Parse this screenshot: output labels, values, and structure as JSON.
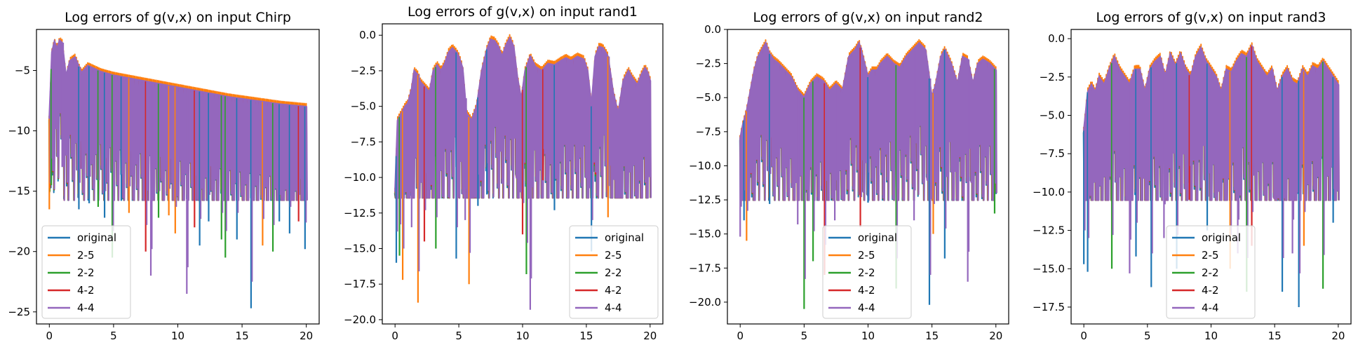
{
  "chart_data": [
    {
      "type": "line",
      "title": "Log errors of g(v,x) on input Chirp",
      "xlabel": "",
      "ylabel": "",
      "xlim": [
        -1,
        21
      ],
      "ylim": [
        -26,
        -1.6
      ],
      "xticks": [
        0,
        5,
        10,
        15,
        20
      ],
      "xtick_labels": [
        "0",
        "5",
        "10",
        "15",
        "20"
      ],
      "yticks": [
        -5,
        -10,
        -15,
        -20,
        -25
      ],
      "ytick_labels": [
        "−5",
        "−10",
        "−15",
        "−20",
        "−25"
      ],
      "legend_position": "lower-left",
      "series": [
        {
          "name": "original",
          "color": "#1f77b4"
        },
        {
          "name": "2-5",
          "color": "#ff7f0e"
        },
        {
          "name": "2-2",
          "color": "#2ca02c"
        },
        {
          "name": "4-2",
          "color": "#d62728"
        },
        {
          "name": "4-4",
          "color": "#9467bd"
        }
      ],
      "upper_envelope": {
        "x": [
          0,
          0.2,
          0.4,
          0.6,
          0.8,
          1.0,
          1.3,
          1.6,
          2.0,
          2.5,
          3.0,
          4.0,
          5.0,
          6.0,
          8.0,
          10.0,
          12.0,
          14.0,
          16.0,
          18.0,
          20.0
        ],
        "y": [
          -9,
          -3.5,
          -2.6,
          -3.2,
          -2.5,
          -2.7,
          -5.5,
          -4.2,
          -3.9,
          -5.2,
          -4.6,
          -5.1,
          -5.4,
          -5.6,
          -6.0,
          -6.4,
          -6.8,
          -7.2,
          -7.5,
          -7.8,
          -8.0
        ]
      },
      "trough_minima": [
        {
          "x": 0.0,
          "y": -16.5,
          "series": "2-5"
        },
        {
          "x": 0.15,
          "y": -14.5,
          "series": "2-2"
        },
        {
          "x": 1.0,
          "y": -13.0,
          "series": "4-4"
        },
        {
          "x": 2.3,
          "y": -16.5,
          "series": "original"
        },
        {
          "x": 3.1,
          "y": -16.0,
          "series": "original"
        },
        {
          "x": 3.8,
          "y": -16.3,
          "series": "2-2"
        },
        {
          "x": 4.3,
          "y": -17.2,
          "series": "original"
        },
        {
          "x": 4.9,
          "y": -20.5,
          "series": "2-2"
        },
        {
          "x": 5.6,
          "y": -15.8,
          "series": "original"
        },
        {
          "x": 6.2,
          "y": -16.8,
          "series": "2-5"
        },
        {
          "x": 7.5,
          "y": -20.0,
          "series": "4-2"
        },
        {
          "x": 7.9,
          "y": -22.0,
          "series": "4-4"
        },
        {
          "x": 8.5,
          "y": -17.2,
          "series": "2-2"
        },
        {
          "x": 9.3,
          "y": -17.0,
          "series": "2-5"
        },
        {
          "x": 9.8,
          "y": -18.5,
          "series": "2-5"
        },
        {
          "x": 10.7,
          "y": -23.5,
          "series": "4-4"
        },
        {
          "x": 11.3,
          "y": -18.0,
          "series": "4-2"
        },
        {
          "x": 11.7,
          "y": -19.5,
          "series": "original"
        },
        {
          "x": 12.4,
          "y": -17.5,
          "series": "original"
        },
        {
          "x": 13.4,
          "y": -19.0,
          "series": "2-2"
        },
        {
          "x": 13.7,
          "y": -20.5,
          "series": "2-2"
        },
        {
          "x": 14.6,
          "y": -19.0,
          "series": "original"
        },
        {
          "x": 15.7,
          "y": -24.7,
          "series": "original"
        },
        {
          "x": 16.6,
          "y": -19.5,
          "series": "2-5"
        },
        {
          "x": 17.4,
          "y": -20.0,
          "series": "2-2"
        },
        {
          "x": 17.9,
          "y": -17.5,
          "series": "original"
        },
        {
          "x": 18.7,
          "y": -18.5,
          "series": "original"
        },
        {
          "x": 19.4,
          "y": -17.5,
          "series": "4-2"
        },
        {
          "x": 19.9,
          "y": -19.8,
          "series": "original"
        }
      ]
    },
    {
      "type": "line",
      "title": "Log errors of g(v,x) on input rand1",
      "xlabel": "",
      "ylabel": "",
      "xlim": [
        -1,
        21
      ],
      "ylim": [
        -20.3,
        0.8
      ],
      "xticks": [
        0,
        5,
        10,
        15,
        20
      ],
      "xtick_labels": [
        "0",
        "5",
        "10",
        "15",
        "20"
      ],
      "yticks": [
        0,
        -2.5,
        -5,
        -7.5,
        -10,
        -12.5,
        -15,
        -17.5,
        -20
      ],
      "ytick_labels": [
        "0.0",
        "−2.5",
        "−5.0",
        "−7.5",
        "−10.0",
        "−12.5",
        "−15.0",
        "−17.5",
        "−20.0"
      ],
      "legend_position": "lower-right",
      "series": [
        {
          "name": "original",
          "color": "#1f77b4"
        },
        {
          "name": "2-5",
          "color": "#ff7f0e"
        },
        {
          "name": "2-2",
          "color": "#2ca02c"
        },
        {
          "name": "4-2",
          "color": "#d62728"
        },
        {
          "name": "4-4",
          "color": "#9467bd"
        }
      ],
      "upper_envelope": {
        "x": [
          0,
          0.2,
          0.5,
          0.8,
          1.0,
          1.3,
          1.5,
          1.8,
          2.0,
          2.3,
          2.7,
          3.0,
          3.3,
          3.6,
          3.9,
          4.2,
          4.5,
          4.8,
          5.0,
          5.3,
          5.6,
          6.0,
          6.4,
          6.8,
          7.2,
          7.5,
          7.8,
          8.1,
          8.4,
          8.7,
          9.0,
          9.3,
          9.6,
          9.9,
          10.2,
          10.6,
          11.0,
          11.5,
          12.0,
          12.5,
          13.0,
          13.4,
          13.8,
          14.3,
          14.8,
          15.1,
          15.4,
          15.7,
          16.0,
          16.3,
          16.7,
          17.1,
          17.5,
          17.9,
          18.3,
          18.6,
          19.0,
          19.3,
          19.6,
          19.8,
          20.0
        ],
        "y": [
          -11,
          -6.0,
          -5.5,
          -5.0,
          -4.8,
          -3.8,
          -2.5,
          -2.8,
          -3.3,
          -3.6,
          -4.0,
          -2.5,
          -2.1,
          -2.5,
          -2.0,
          -1.2,
          -0.9,
          -1.2,
          -1.5,
          -2.3,
          -5.5,
          -6.0,
          -5.0,
          -2.5,
          -1.0,
          -0.3,
          -0.4,
          -0.8,
          -1.5,
          -0.7,
          -0.2,
          -0.8,
          -3.0,
          -4.5,
          -2.5,
          -1.5,
          -2.2,
          -2.5,
          -2.0,
          -2.1,
          -1.8,
          -1.6,
          -1.8,
          -1.5,
          -1.7,
          -2.5,
          -5.0,
          -1.5,
          -0.8,
          -0.9,
          -1.5,
          -4.0,
          -5.5,
          -3.2,
          -2.5,
          -3.0,
          -3.5,
          -2.8,
          -2.3,
          -2.6,
          -3.2
        ]
      },
      "trough_minima": [
        {
          "x": 0.1,
          "y": -16.0,
          "series": "original"
        },
        {
          "x": 0.35,
          "y": -15.5,
          "series": "2-2"
        },
        {
          "x": 0.6,
          "y": -17.2,
          "series": "2-5"
        },
        {
          "x": 1.3,
          "y": -13.5,
          "series": "4-4"
        },
        {
          "x": 1.8,
          "y": -18.8,
          "series": "2-5"
        },
        {
          "x": 2.3,
          "y": -14.5,
          "series": "4-2"
        },
        {
          "x": 3.2,
          "y": -15.0,
          "series": "2-2"
        },
        {
          "x": 4.8,
          "y": -15.7,
          "series": "original"
        },
        {
          "x": 5.5,
          "y": -13.0,
          "series": "4-4"
        },
        {
          "x": 5.8,
          "y": -17.5,
          "series": "2-5"
        },
        {
          "x": 6.5,
          "y": -12.0,
          "series": "original"
        },
        {
          "x": 7.2,
          "y": -11.2,
          "series": "original"
        },
        {
          "x": 10.0,
          "y": -14.0,
          "series": "4-2"
        },
        {
          "x": 10.3,
          "y": -16.8,
          "series": "2-2"
        },
        {
          "x": 10.6,
          "y": -19.3,
          "series": "4-4"
        },
        {
          "x": 11.6,
          "y": -10.2,
          "series": "4-2"
        },
        {
          "x": 12.5,
          "y": -12.3,
          "series": "original"
        },
        {
          "x": 15.4,
          "y": -15.2,
          "series": "original"
        },
        {
          "x": 16.7,
          "y": -12.8,
          "series": "2-5"
        }
      ]
    },
    {
      "type": "line",
      "title": "Log errors of g(v,x) on input rand2",
      "xlabel": "",
      "ylabel": "",
      "xlim": [
        -1,
        21
      ],
      "ylim": [
        -21.6,
        0.0
      ],
      "xticks": [
        0,
        5,
        10,
        15,
        20
      ],
      "xtick_labels": [
        "0",
        "5",
        "10",
        "15",
        "20"
      ],
      "yticks": [
        0,
        -2.5,
        -5,
        -7.5,
        -10,
        -12.5,
        -15,
        -17.5,
        -20
      ],
      "ytick_labels": [
        "0.0",
        "−2.5",
        "−5.0",
        "−7.5",
        "−10.0",
        "−12.5",
        "−15.0",
        "−17.5",
        "−20.0"
      ],
      "legend_position": "lower-center",
      "series": [
        {
          "name": "original",
          "color": "#1f77b4"
        },
        {
          "name": "2-5",
          "color": "#ff7f0e"
        },
        {
          "name": "2-2",
          "color": "#2ca02c"
        },
        {
          "name": "4-2",
          "color": "#d62728"
        },
        {
          "name": "4-4",
          "color": "#9467bd"
        }
      ],
      "upper_envelope": {
        "x": [
          0,
          0.2,
          0.5,
          0.8,
          1.1,
          1.4,
          1.7,
          2.0,
          2.3,
          2.6,
          3.0,
          3.5,
          4.0,
          4.5,
          5.0,
          5.5,
          6.0,
          6.5,
          7.0,
          7.5,
          8.0,
          8.5,
          9.0,
          9.3,
          9.6,
          10.0,
          10.3,
          10.7,
          11.0,
          11.5,
          12.0,
          12.5,
          13.0,
          13.5,
          14.0,
          14.5,
          15.0,
          15.3,
          15.7,
          16.0,
          16.5,
          17.0,
          17.4,
          17.8,
          18.2,
          18.6,
          19.0,
          19.5,
          20.0
        ],
        "y": [
          -8,
          -7.0,
          -6.0,
          -4.5,
          -3.0,
          -2.0,
          -1.5,
          -1.0,
          -1.8,
          -2.2,
          -2.5,
          -3.0,
          -3.5,
          -4.5,
          -5.0,
          -4.0,
          -3.5,
          -3.8,
          -4.5,
          -4.0,
          -4.5,
          -2.0,
          -1.5,
          -1.0,
          -2.0,
          -3.5,
          -3.0,
          -3.0,
          -2.5,
          -2.0,
          -2.5,
          -2.8,
          -2.0,
          -1.5,
          -1.0,
          -1.5,
          -5.0,
          -4.0,
          -2.0,
          -1.5,
          -2.5,
          -4.0,
          -2.0,
          -2.2,
          -4.0,
          -2.5,
          -2.2,
          -2.5,
          -3.0
        ]
      },
      "trough_minima": [
        {
          "x": 0.0,
          "y": -15.2,
          "series": "4-4"
        },
        {
          "x": 0.3,
          "y": -14.0,
          "series": "original"
        },
        {
          "x": 0.5,
          "y": -15.5,
          "series": "2-5"
        },
        {
          "x": 2.3,
          "y": -12.8,
          "series": "original"
        },
        {
          "x": 4.5,
          "y": -14.3,
          "series": "4-4"
        },
        {
          "x": 5.0,
          "y": -20.5,
          "series": "2-2"
        },
        {
          "x": 5.7,
          "y": -17.0,
          "series": "2-2"
        },
        {
          "x": 6.6,
          "y": -18.0,
          "series": "4-2"
        },
        {
          "x": 7.4,
          "y": -14.0,
          "series": "4-4"
        },
        {
          "x": 9.4,
          "y": -14.5,
          "series": "4-2"
        },
        {
          "x": 10.0,
          "y": -12.7,
          "series": "original"
        },
        {
          "x": 12.2,
          "y": -19.0,
          "series": "2-2"
        },
        {
          "x": 13.6,
          "y": -14.0,
          "series": "4-4"
        },
        {
          "x": 14.8,
          "y": -20.2,
          "series": "original"
        },
        {
          "x": 15.1,
          "y": -15.0,
          "series": "2-5"
        },
        {
          "x": 16.0,
          "y": -16.8,
          "series": "original"
        },
        {
          "x": 17.8,
          "y": -18.5,
          "series": "4-4"
        },
        {
          "x": 19.9,
          "y": -13.5,
          "series": "2-2"
        }
      ]
    },
    {
      "type": "line",
      "title": "Log errors of g(v,x) on input rand3",
      "xlabel": "",
      "ylabel": "",
      "xlim": [
        -1,
        21
      ],
      "ylim": [
        -18.6,
        0.6
      ],
      "xticks": [
        0,
        5,
        10,
        15,
        20
      ],
      "xtick_labels": [
        "0",
        "5",
        "10",
        "15",
        "20"
      ],
      "yticks": [
        0,
        -2.5,
        -5,
        -7.5,
        -10,
        -12.5,
        -15,
        -17.5
      ],
      "ytick_labels": [
        "0.0",
        "−2.5",
        "−5.0",
        "−7.5",
        "−10.0",
        "−12.5",
        "−15.0",
        "−17.5"
      ],
      "legend_position": "lower-center",
      "series": [
        {
          "name": "original",
          "color": "#1f77b4"
        },
        {
          "name": "2-5",
          "color": "#ff7f0e"
        },
        {
          "name": "2-2",
          "color": "#2ca02c"
        },
        {
          "name": "4-2",
          "color": "#d62728"
        },
        {
          "name": "4-4",
          "color": "#9467bd"
        }
      ],
      "upper_envelope": {
        "x": [
          0,
          0.3,
          0.6,
          0.9,
          1.2,
          1.6,
          2.0,
          2.4,
          2.8,
          3.2,
          3.6,
          4.0,
          4.4,
          4.8,
          5.2,
          5.6,
          6.0,
          6.4,
          6.8,
          7.2,
          7.6,
          8.0,
          8.4,
          8.8,
          9.2,
          9.6,
          10.0,
          10.4,
          10.8,
          11.2,
          11.6,
          12.0,
          12.4,
          12.8,
          13.2,
          13.6,
          14.0,
          14.4,
          14.8,
          15.2,
          15.6,
          16.0,
          16.4,
          16.8,
          17.2,
          17.6,
          18.0,
          18.4,
          18.8,
          19.2,
          19.6,
          20.0
        ],
        "y": [
          -6,
          -3.5,
          -3.0,
          -3.5,
          -2.5,
          -3.0,
          -2.0,
          -1.2,
          -2.0,
          -2.5,
          -3.0,
          -2.0,
          -2.0,
          -3.5,
          -2.0,
          -1.5,
          -1.2,
          -2.5,
          -1.0,
          -1.8,
          -1.0,
          -2.0,
          -2.5,
          -1.2,
          -0.6,
          -1.5,
          -2.0,
          -2.5,
          -3.5,
          -2.0,
          -2.2,
          -1.5,
          -1.0,
          -1.2,
          -0.5,
          -1.5,
          -2.0,
          -2.5,
          -2.0,
          -3.5,
          -2.5,
          -2.0,
          -2.8,
          -3.0,
          -2.0,
          -2.5,
          -1.8,
          -2.0,
          -1.5,
          -2.0,
          -2.5,
          -3.0
        ]
      },
      "trough_minima": [
        {
          "x": 0.0,
          "y": -14.7,
          "series": "original"
        },
        {
          "x": 0.3,
          "y": -15.2,
          "series": "original"
        },
        {
          "x": 2.2,
          "y": -15.0,
          "series": "2-2"
        },
        {
          "x": 3.6,
          "y": -15.3,
          "series": "4-4"
        },
        {
          "x": 4.1,
          "y": -14.2,
          "series": "original"
        },
        {
          "x": 5.3,
          "y": -16.2,
          "series": "original"
        },
        {
          "x": 6.3,
          "y": -13.0,
          "series": "4-4"
        },
        {
          "x": 7.3,
          "y": -15.0,
          "series": "original"
        },
        {
          "x": 8.3,
          "y": -10.5,
          "series": "4-2"
        },
        {
          "x": 9.7,
          "y": -12.5,
          "series": "original"
        },
        {
          "x": 11.5,
          "y": -15.0,
          "series": "2-5"
        },
        {
          "x": 12.1,
          "y": -14.0,
          "series": "4-4"
        },
        {
          "x": 12.8,
          "y": -16.5,
          "series": "2-2"
        },
        {
          "x": 13.2,
          "y": -13.5,
          "series": "4-2"
        },
        {
          "x": 15.6,
          "y": -16.5,
          "series": "original"
        },
        {
          "x": 16.4,
          "y": -14.0,
          "series": "4-4"
        },
        {
          "x": 16.9,
          "y": -17.5,
          "series": "original"
        },
        {
          "x": 17.3,
          "y": -13.5,
          "series": "2-5"
        },
        {
          "x": 18.8,
          "y": -16.3,
          "series": "2-2"
        },
        {
          "x": 19.6,
          "y": -12.0,
          "series": "original"
        }
      ]
    }
  ]
}
